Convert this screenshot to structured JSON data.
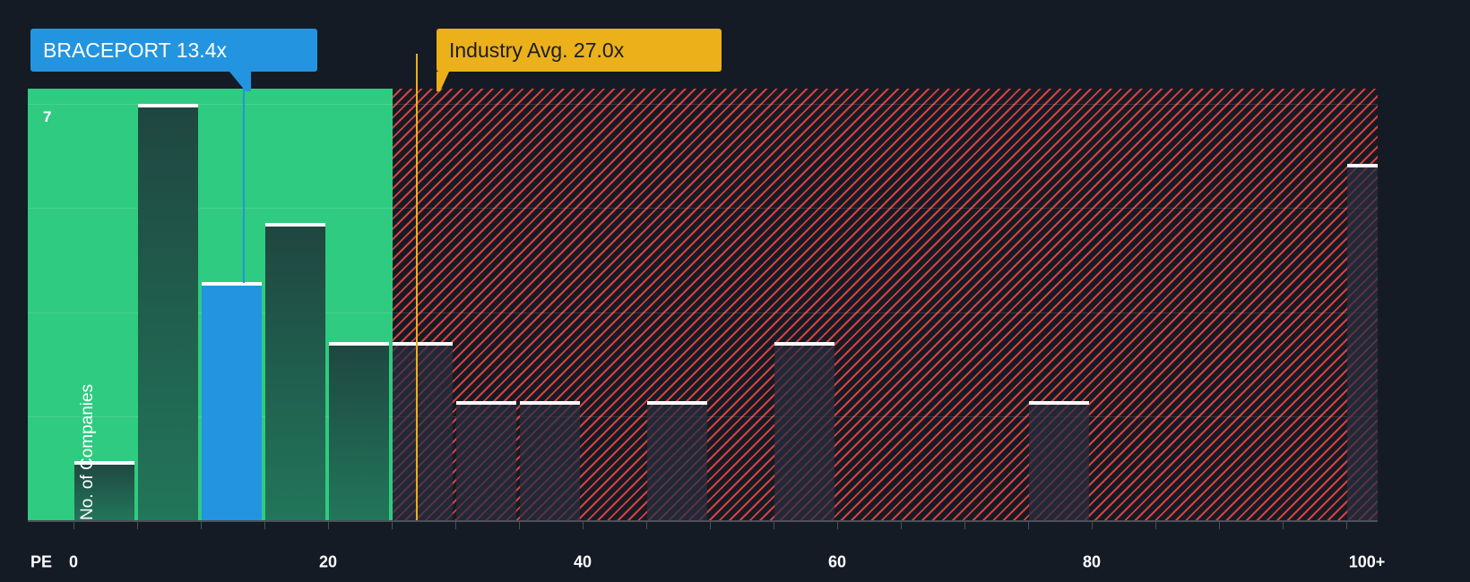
{
  "chart_data": {
    "type": "bar",
    "title": "",
    "xlabel": "PE",
    "ylabel": "No. of Companies",
    "x_ticks": [
      "0",
      "20",
      "40",
      "60",
      "80",
      "100+"
    ],
    "y_max_label": "7",
    "ylim": [
      0,
      7
    ],
    "bin_width": 5,
    "bins": [
      {
        "range": "0-5",
        "x_start": 0,
        "count": 1,
        "zone": "below"
      },
      {
        "range": "5-10",
        "x_start": 5,
        "count": 7,
        "zone": "below"
      },
      {
        "range": "10-15",
        "x_start": 10,
        "count": 4,
        "zone": "below",
        "highlight": true
      },
      {
        "range": "15-20",
        "x_start": 15,
        "count": 5,
        "zone": "below"
      },
      {
        "range": "20-25",
        "x_start": 20,
        "count": 3,
        "zone": "below"
      },
      {
        "range": "25-30",
        "x_start": 25,
        "count": 3,
        "zone": "above"
      },
      {
        "range": "30-35",
        "x_start": 30,
        "count": 2,
        "zone": "above"
      },
      {
        "range": "35-40",
        "x_start": 35,
        "count": 2,
        "zone": "above"
      },
      {
        "range": "45-50",
        "x_start": 45,
        "count": 2,
        "zone": "above"
      },
      {
        "range": "55-60",
        "x_start": 55,
        "count": 3,
        "zone": "above"
      },
      {
        "range": "75-80",
        "x_start": 75,
        "count": 2,
        "zone": "above"
      },
      {
        "range": "100+",
        "x_start": 100,
        "count": 6,
        "zone": "above"
      }
    ],
    "annotations": [
      {
        "label": "BRACEPORT 13.4x",
        "value": 13.4,
        "color": "#2394e0"
      },
      {
        "label": "Industry Avg. 27.0x",
        "value": 27.0,
        "color": "#ecb01a"
      }
    ],
    "grid": true,
    "legend": "none"
  },
  "colors": {
    "background": "#151b24",
    "below_zone": "#2ecb80",
    "above_zone_hatch": "#d94040",
    "company": "#2394e0",
    "industry": "#ecb01a"
  },
  "labels": {
    "company_callout": "BRACEPORT 13.4x",
    "industry_callout": "Industry Avg. 27.0x",
    "y_axis": "No. of Companies",
    "y_max": "7",
    "x_axis": "PE",
    "x_ticks": [
      "0",
      "20",
      "40",
      "60",
      "80",
      "100+"
    ]
  }
}
